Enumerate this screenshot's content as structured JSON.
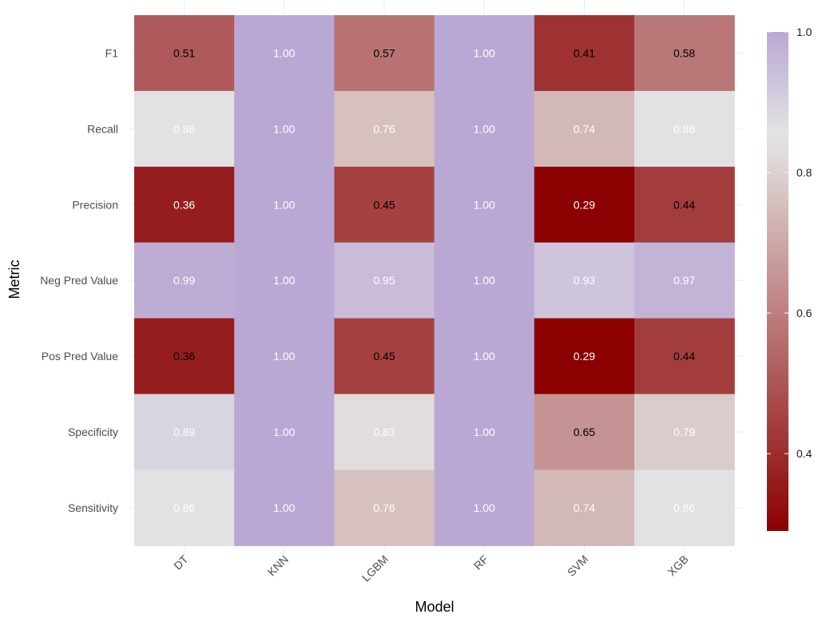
{
  "chart_data": {
    "type": "heatmap",
    "xlabel": "Model",
    "ylabel": "Metric",
    "x_categories": [
      "DT",
      "KNN",
      "LGBM",
      "RF",
      "SVM",
      "XGB"
    ],
    "y_categories": [
      "F1",
      "Recall",
      "Precision",
      "Neg Pred Value",
      "Pos Pred Value",
      "Specificity",
      "Sensitivity"
    ],
    "values": [
      [
        0.51,
        1.0,
        0.57,
        1.0,
        0.41,
        0.58
      ],
      [
        0.86,
        1.0,
        0.76,
        1.0,
        0.74,
        0.86
      ],
      [
        0.36,
        1.0,
        0.45,
        1.0,
        0.29,
        0.44
      ],
      [
        0.99,
        1.0,
        0.95,
        1.0,
        0.93,
        0.97
      ],
      [
        0.36,
        1.0,
        0.45,
        1.0,
        0.29,
        0.44
      ],
      [
        0.89,
        1.0,
        0.83,
        1.0,
        0.65,
        0.79
      ],
      [
        0.86,
        1.0,
        0.76,
        1.0,
        0.74,
        0.86
      ]
    ],
    "cell_labels": [
      [
        "0.51",
        "1.00",
        "0.57",
        "1.00",
        "0.41",
        "0.58"
      ],
      [
        "0.86",
        "1.00",
        "0.76",
        "1.00",
        "0.74",
        "0.86"
      ],
      [
        "0.36",
        "1.00",
        "0.45",
        "1.00",
        "0.29",
        "0.44"
      ],
      [
        "0.99",
        "1.00",
        "0.95",
        "1.00",
        "0.93",
        "0.97"
      ],
      [
        "0.36",
        "1.00",
        "0.45",
        "1.00",
        "0.29",
        "0.44"
      ],
      [
        "0.89",
        "1.00",
        "0.83",
        "1.00",
        "0.65",
        "0.79"
      ],
      [
        "0.86",
        "1.00",
        "0.76",
        "1.00",
        "0.74",
        "0.86"
      ]
    ],
    "colorbar": {
      "min": 0.29,
      "max": 1.0,
      "ticks": [
        0.4,
        0.6,
        0.8,
        1.0
      ],
      "tick_labels": [
        "0.4",
        "0.6",
        "0.8",
        "1.0"
      ],
      "color_low": "#8b0000",
      "color_mid": "#e5e5e5",
      "color_high": "#b9a8d3",
      "midpoint": 0.85
    },
    "legend_position": "right",
    "grid": true,
    "label_colors": {
      "dark_text": "#000000",
      "light_text": "#ffffff"
    }
  }
}
